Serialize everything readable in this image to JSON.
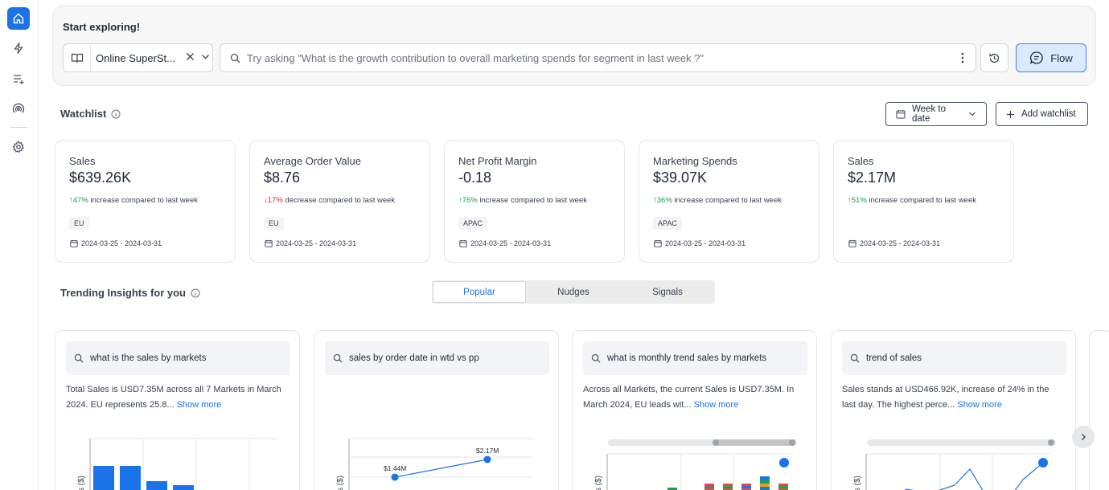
{
  "explore": {
    "title": "Start exploring!",
    "dataset": "Online SuperSt...",
    "placeholder": "Try asking \"What is the growth contribution to overall marketing spends for segment in last week ?\"",
    "flow_label": "Flow"
  },
  "watchlist": {
    "title": "Watchlist",
    "period_label": "Week to date",
    "add_label": "Add watchlist",
    "cards": [
      {
        "title": "Sales",
        "value": "$639.26K",
        "dir": "up",
        "pct": "47%",
        "text": "increase compared to last week",
        "tag": "EU",
        "date": "2024-03-25 - 2024-03-31"
      },
      {
        "title": "Average Order Value",
        "value": "$8.76",
        "dir": "down",
        "pct": "17%",
        "text": "decrease compared to last week",
        "tag": "EU",
        "date": "2024-03-25 - 2024-03-31"
      },
      {
        "title": "Net Profit Margin",
        "value": "-0.18",
        "dir": "up",
        "pct": "76%",
        "text": "increase compared to last week",
        "tag": "APAC",
        "date": "2024-03-25 - 2024-03-31"
      },
      {
        "title": "Marketing Spends",
        "value": "$39.07K",
        "dir": "up",
        "pct": "36%",
        "text": "increase compared to last week",
        "tag": "APAC",
        "date": "2024-03-25 - 2024-03-31"
      },
      {
        "title": "Sales",
        "value": "$2.17M",
        "dir": "up",
        "pct": "51%",
        "text": "increase compared to last week",
        "tag": "",
        "date": "2024-03-25 - 2024-03-31"
      }
    ]
  },
  "trending": {
    "title": "Trending Insights for you",
    "tabs": [
      "Popular",
      "Nudges",
      "Signals"
    ],
    "active_tab": "Popular",
    "cards": [
      {
        "query": "what is the sales by markets",
        "desc": "Total Sales is USD7.35M across all 7 Markets in March 2024. EU represents 25.8...",
        "more": "Show more",
        "ylabel": "Sales ($)"
      },
      {
        "query": "sales by order date in wtd vs pp",
        "desc": "",
        "more": "",
        "ylabel": "Sales ($)",
        "labels": [
          "$1.44M",
          "$2.17M"
        ]
      },
      {
        "query": "what is monthly trend sales by markets",
        "desc": "Across all Markets, the current Sales is USD7.35M. In March 2024, EU leads wit...",
        "more": "Show more",
        "ylabel": "Sales ($)"
      },
      {
        "query": "trend of sales",
        "desc": "Sales stands at USD466.92K, increase of 24% in the last day. The highest perce...",
        "more": "Show more",
        "ylabel": "Sales ($)"
      }
    ]
  },
  "colors": {
    "accent": "#1a73e8",
    "up": "#16a34a",
    "down": "#dc2626"
  }
}
